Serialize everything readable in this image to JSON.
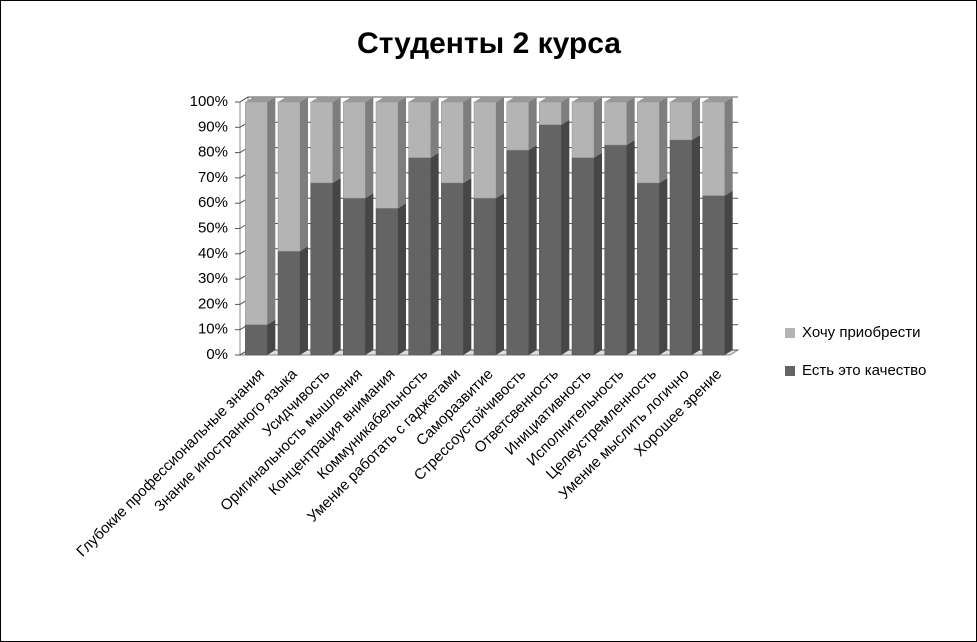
{
  "chart_data": {
    "type": "stacked_bar_3d",
    "title": "Студенты 2 курса",
    "categories": [
      "Глубокие профессиональные знания",
      "Знание иностранного языка",
      "Усидчивость",
      "Оригинальность мышления",
      "Концентрация внимания",
      "Коммуникабельность",
      "Умение работать с гаджетами",
      "Саморазвитие",
      "Стрессоустойчивость",
      "Ответсвенность",
      "Инициативность",
      "Исполнительность",
      "Целеустремленность",
      "Умение мыслить логично",
      "Хорошее зрение"
    ],
    "series": [
      {
        "name": "Есть это качество",
        "color": "#646464",
        "values": [
          12,
          41,
          68,
          62,
          58,
          78,
          68,
          62,
          81,
          91,
          78,
          83,
          68,
          85,
          63
        ]
      },
      {
        "name": "Хочу приобрести",
        "color": "#b4b4b4",
        "values": [
          88,
          59,
          32,
          38,
          42,
          22,
          32,
          38,
          19,
          9,
          22,
          17,
          32,
          15,
          37
        ]
      }
    ],
    "ylim": [
      0,
      100
    ],
    "yticks": [
      {
        "value": 0,
        "label": "0%"
      },
      {
        "value": 10,
        "label": "10%"
      },
      {
        "value": 20,
        "label": "20%"
      },
      {
        "value": 30,
        "label": "30%"
      },
      {
        "value": 40,
        "label": "40%"
      },
      {
        "value": 50,
        "label": "50%"
      },
      {
        "value": 60,
        "label": "60%"
      },
      {
        "value": 70,
        "label": "70%"
      },
      {
        "value": 80,
        "label": "80%"
      },
      {
        "value": 90,
        "label": "90%"
      },
      {
        "value": 100,
        "label": "100%"
      }
    ],
    "grid": true,
    "legend": "right"
  }
}
